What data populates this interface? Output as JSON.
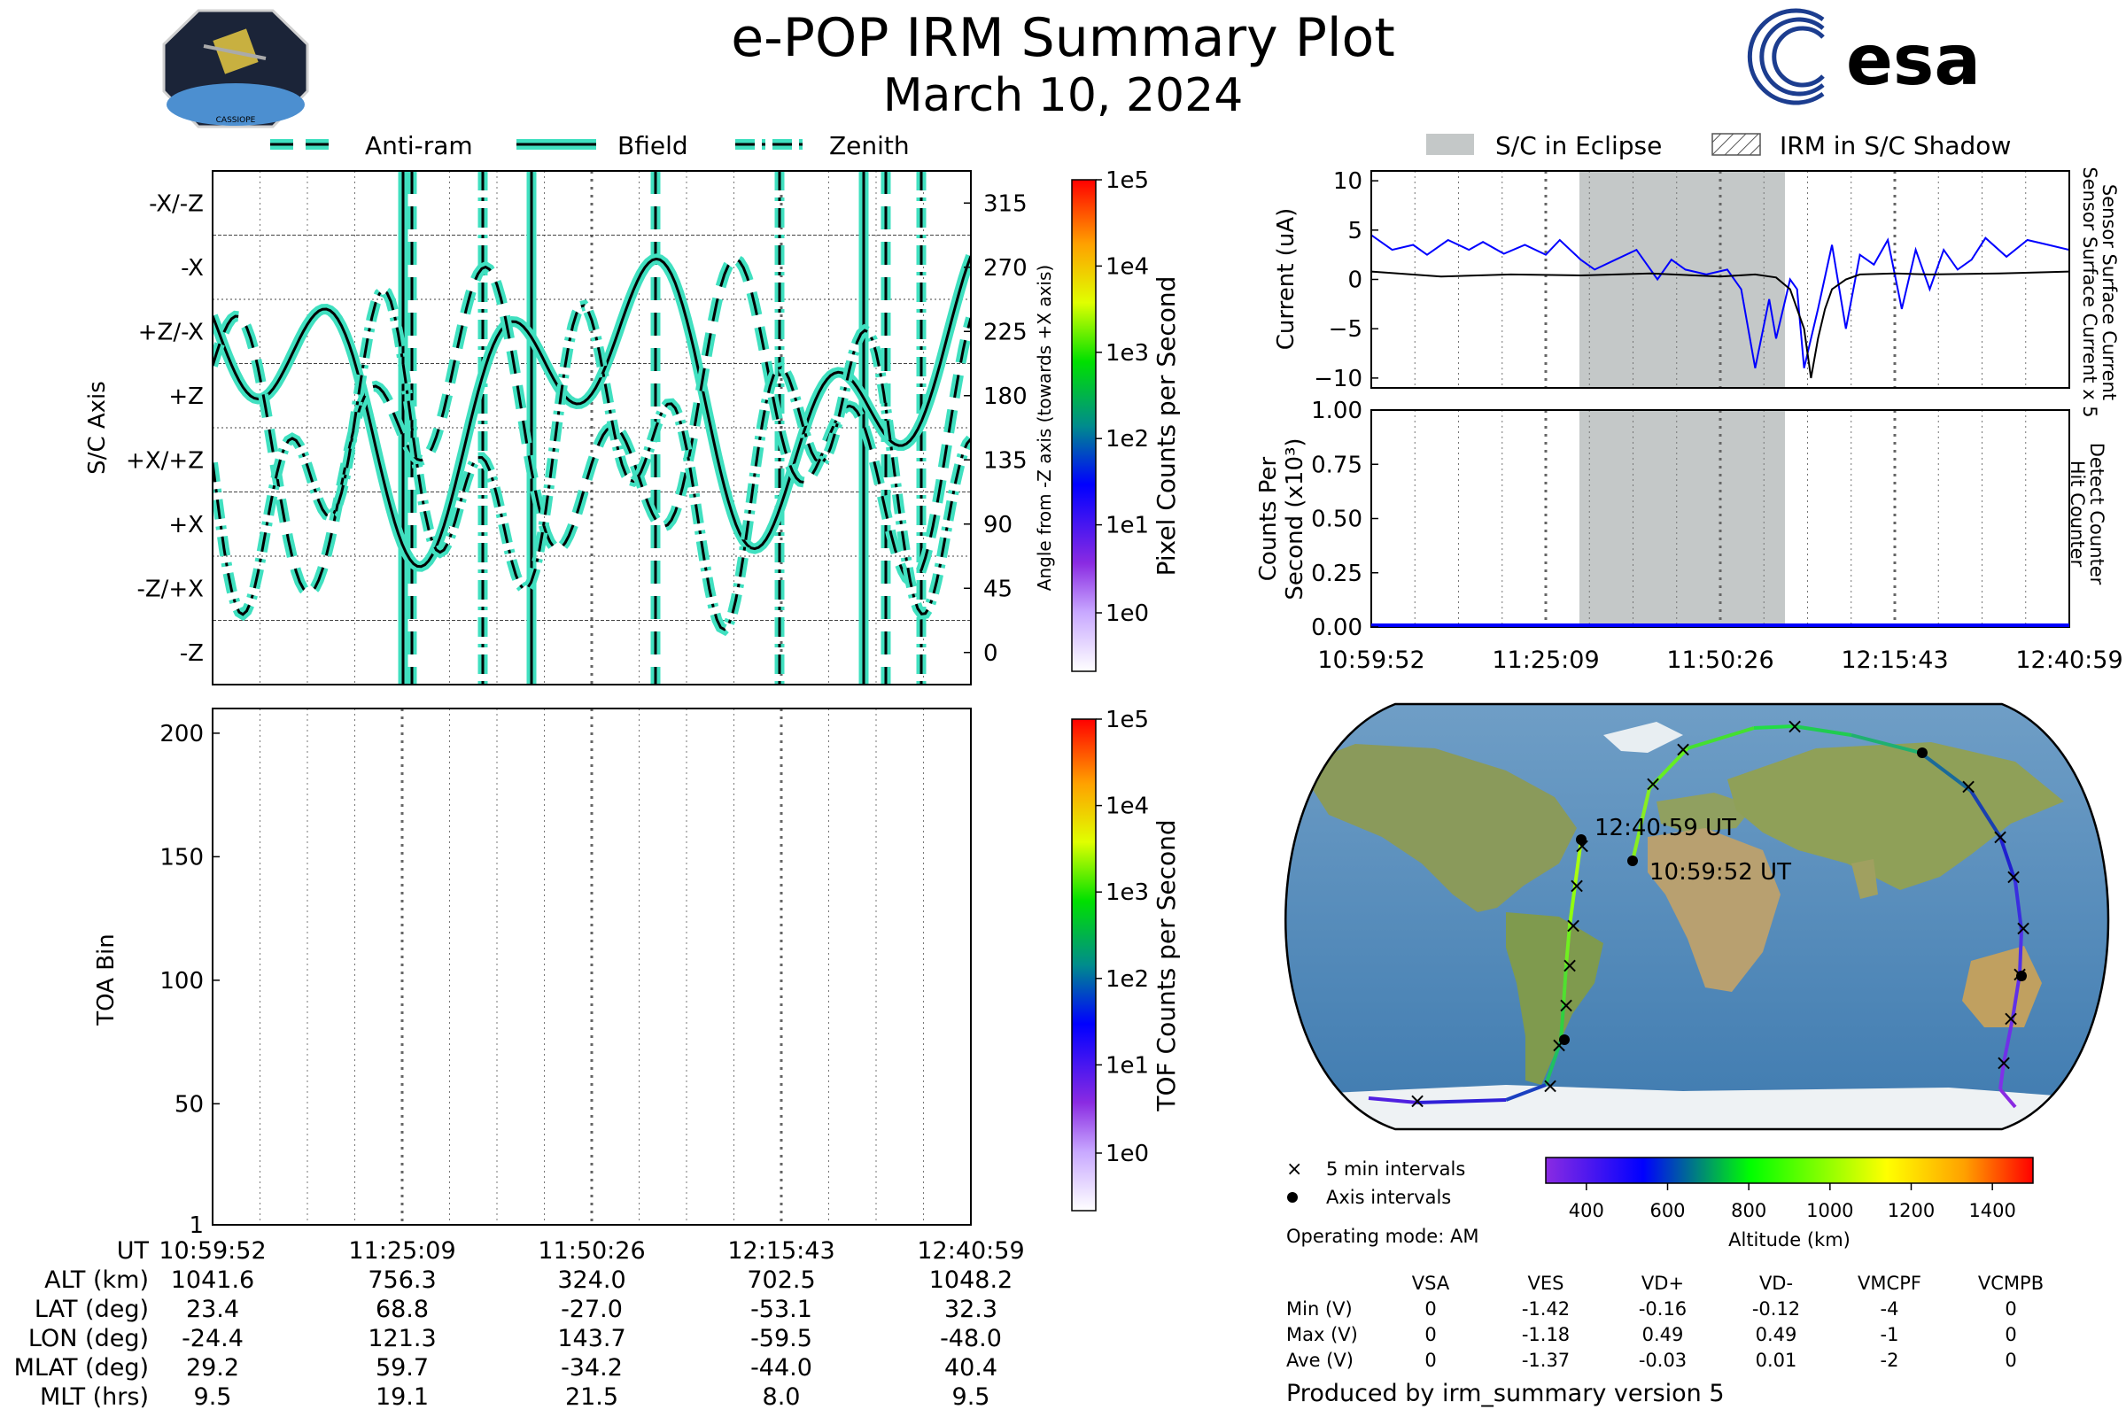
{
  "header": {
    "title": "e-POP IRM Summary Plot",
    "date": "March 10, 2024",
    "mission_logo": "CASSIOPE",
    "agency_logo": "esa"
  },
  "legend_top_left": [
    "Anti-ram",
    "Bfield",
    "Zenith"
  ],
  "legend_top_right": [
    "S/C in Eclipse",
    "IRM in S/C Shadow"
  ],
  "colors": {
    "trace_fill": "#40e0c0",
    "trace_line": "#000000",
    "eclipse": "#c4c8c8",
    "current_sensor": "#0000ff",
    "current_surface": "#000000"
  },
  "time_ticks": [
    "10:59:52",
    "11:25:09",
    "11:50:26",
    "12:15:43",
    "12:40:59"
  ],
  "chart_data": [
    {
      "type": "line",
      "name": "sc-axis-panel",
      "ylabel": "S/C Axis",
      "ylabel_right": "Angle from -Z axis (towards +X axis)",
      "axis_labels": [
        "-X/-Z",
        "-X",
        "+Z/-X",
        "+Z",
        "+X/+Z",
        "+X",
        "-Z/+X",
        "-Z"
      ],
      "angle_ticks": [
        "315",
        "270",
        "225",
        "180",
        "135",
        "90",
        "45",
        "0"
      ],
      "ylim": [
        -22.5,
        337.5
      ],
      "colorbar_label": "Pixel Counts per Second",
      "colorbar_ticks": [
        "1e5",
        "1e4",
        "1e3",
        "1e2",
        "1e1",
        "1e0"
      ]
    },
    {
      "type": "heatmap",
      "name": "toa-panel",
      "ylabel": "TOA Bin",
      "yticks": [
        "200",
        "150",
        "100",
        "50",
        "1"
      ],
      "ylim": [
        1,
        210
      ],
      "colorbar_label": "TOF Counts per Second",
      "colorbar_ticks": [
        "1e5",
        "1e4",
        "1e3",
        "1e2",
        "1e1",
        "1e0"
      ]
    },
    {
      "type": "line",
      "name": "current-panel",
      "ylabel": "Current (uA)",
      "ylim": [
        -11,
        11
      ],
      "yticks": [
        "10",
        "5",
        "0",
        "−5",
        "−10"
      ],
      "right_label_blue": "Sensor Surface Current x 5",
      "right_label_black": "Sensor Surface Current",
      "eclipse_range": [
        "11:30:00",
        "11:59:00"
      ],
      "series": [
        {
          "name": "Sensor Surface Current x 5",
          "t": [
            0,
            3,
            6,
            8,
            11,
            14,
            16,
            19,
            22,
            25,
            27,
            30,
            32,
            35,
            38,
            41,
            43,
            45,
            48,
            51,
            53,
            55,
            57,
            58,
            60,
            61,
            62,
            63,
            64,
            66,
            68,
            70,
            72,
            74,
            76,
            78,
            80,
            82,
            84,
            86,
            88,
            91,
            94,
            97,
            100
          ],
          "y": [
            4.5,
            3,
            3.5,
            2.5,
            4,
            3,
            3.8,
            2.6,
            3.5,
            2.5,
            4,
            2,
            1,
            2,
            3,
            0,
            2,
            1,
            0.5,
            1,
            -1,
            -9,
            -2,
            -6,
            0,
            -1,
            -9,
            -6,
            -3,
            3.5,
            -5,
            2.5,
            1.5,
            4,
            -3,
            3,
            -1,
            3,
            1,
            2,
            4.2,
            2.3,
            4,
            3.5,
            3
          ]
        },
        {
          "name": "Sensor Surface Current",
          "t": [
            0,
            10,
            20,
            30,
            40,
            50,
            55,
            58,
            60,
            62,
            63,
            64,
            65,
            66,
            68,
            70,
            75,
            80,
            90,
            100
          ],
          "y": [
            0.8,
            0.3,
            0.5,
            0.4,
            0.6,
            0.3,
            0.5,
            0.2,
            -1,
            -5,
            -10,
            -6,
            -3,
            -1,
            0,
            0.5,
            0.6,
            0.5,
            0.6,
            0.8
          ]
        }
      ]
    },
    {
      "type": "line",
      "name": "counts-panel",
      "ylabel": "Counts Per Second (x10³)",
      "ylim": [
        0,
        1
      ],
      "yticks": [
        "1.00",
        "0.75",
        "0.50",
        "0.25",
        "0.00"
      ],
      "right_label_blue": "Detect Counter",
      "right_label_black": "Hit Counter",
      "series": [
        {
          "name": "Detect Counter",
          "values": [
            0,
            0
          ]
        }
      ]
    }
  ],
  "ephemeris": {
    "row_labels": [
      "UT",
      "ALT (km)",
      "LAT (deg)",
      "LON (deg)",
      "MLAT (deg)",
      "MLT (hrs)"
    ],
    "columns": [
      [
        "10:59:52",
        "1041.6",
        "23.4",
        "-24.4",
        "29.2",
        "9.5"
      ],
      [
        "11:25:09",
        "756.3",
        "68.8",
        "121.3",
        "59.7",
        "19.1"
      ],
      [
        "11:50:26",
        "324.0",
        "-27.0",
        "143.7",
        "-34.2",
        "21.5"
      ],
      [
        "12:15:43",
        "702.5",
        "-53.1",
        "-59.5",
        "-44.0",
        "8.0"
      ],
      [
        "12:40:59",
        "1048.2",
        "32.3",
        "-48.0",
        "40.4",
        "9.5"
      ]
    ]
  },
  "map": {
    "start_label": "10:59:52 UT",
    "end_label": "12:40:59 UT",
    "legend_5min": "5 min intervals",
    "legend_axis": "Axis intervals",
    "altitude_label": "Altitude (km)",
    "altitude_ticks": [
      "400",
      "600",
      "800",
      "1000",
      "1200",
      "1400"
    ],
    "operating_mode": "Operating mode: AM"
  },
  "voltages": {
    "headers": [
      "VSA",
      "VES",
      "VD+",
      "VD-",
      "VMCPF",
      "VCMPB"
    ],
    "rows": [
      {
        "label": "Min (V)",
        "values": [
          "0",
          "-1.42",
          "-0.16",
          "-0.12",
          "-4",
          "0"
        ]
      },
      {
        "label": "Max (V)",
        "values": [
          "0",
          "-1.18",
          "0.49",
          "0.49",
          "-1",
          "0"
        ]
      },
      {
        "label": "Ave (V)",
        "values": [
          "0",
          "-1.37",
          "-0.03",
          "0.01",
          "-2",
          "0"
        ]
      }
    ]
  },
  "footer": "Produced by irm_summary version 5"
}
